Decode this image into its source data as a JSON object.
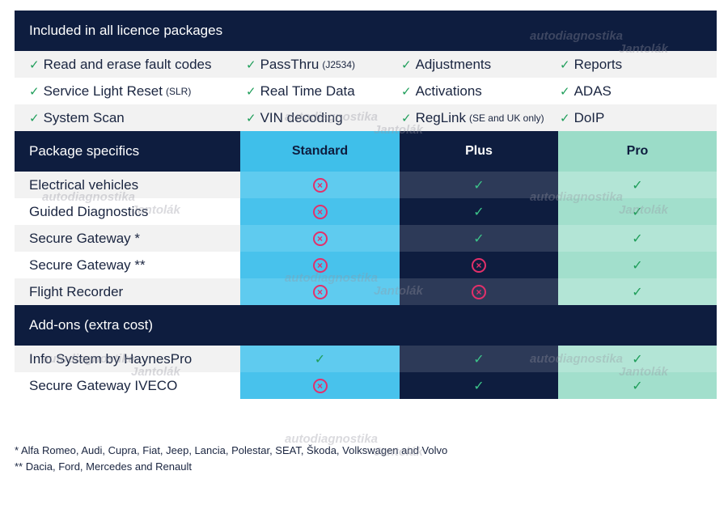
{
  "included": {
    "title": "Included in all licence packages",
    "rows": [
      [
        {
          "text": "Read and erase fault codes",
          "small": ""
        },
        {
          "text": "PassThru",
          "small": "(J2534)"
        },
        {
          "text": "Adjustments",
          "small": ""
        },
        {
          "text": "Reports",
          "small": ""
        }
      ],
      [
        {
          "text": "Service Light Reset",
          "small": "(SLR)"
        },
        {
          "text": "Real Time Data",
          "small": ""
        },
        {
          "text": "Activations",
          "small": ""
        },
        {
          "text": "ADAS",
          "small": ""
        }
      ],
      [
        {
          "text": "System Scan",
          "small": ""
        },
        {
          "text": "VIN decoding",
          "small": ""
        },
        {
          "text": "RegLink",
          "small": "(SE and UK only)"
        },
        {
          "text": "DoIP",
          "small": ""
        }
      ]
    ]
  },
  "check_glyph": "✓",
  "cross_glyph": "×",
  "specifics": {
    "title": "Package specifics",
    "columns": [
      "Standard",
      "Plus",
      "Pro"
    ],
    "rows": [
      {
        "label": "Electrical vehicles",
        "values": [
          "no",
          "yes",
          "yes"
        ]
      },
      {
        "label": "Guided Diagnostics",
        "values": [
          "no",
          "yes",
          "yes"
        ]
      },
      {
        "label": "Secure Gateway *",
        "values": [
          "no",
          "yes",
          "yes"
        ]
      },
      {
        "label": "Secure Gateway **",
        "values": [
          "no",
          "no",
          "yes"
        ]
      },
      {
        "label": "Flight Recorder",
        "values": [
          "no",
          "no",
          "yes"
        ]
      }
    ]
  },
  "addons": {
    "title": "Add-ons (extra cost)",
    "rows": [
      {
        "label": "Info System by HaynesPro",
        "values": [
          "yes",
          "yes",
          "yes"
        ]
      },
      {
        "label": "Secure Gateway IVECO",
        "values": [
          "no",
          "yes",
          "yes"
        ]
      }
    ]
  },
  "footnotes": [
    "*   Alfa Romeo, Audi, Cupra, Fiat, Jeep, Lancia, Polestar, SEAT, Škoda, Volkswagen and Volvo",
    "** Dacia, Ford, Mercedes and Renault"
  ],
  "watermark": {
    "line1": "autodiagnostika",
    "line2": "Jantolák"
  },
  "colors": {
    "navy": "#0e1d3f",
    "standard": "#3fbfea",
    "pro": "#9bdcc8",
    "check": "#1f9e5a",
    "cross": "#e3306a"
  }
}
